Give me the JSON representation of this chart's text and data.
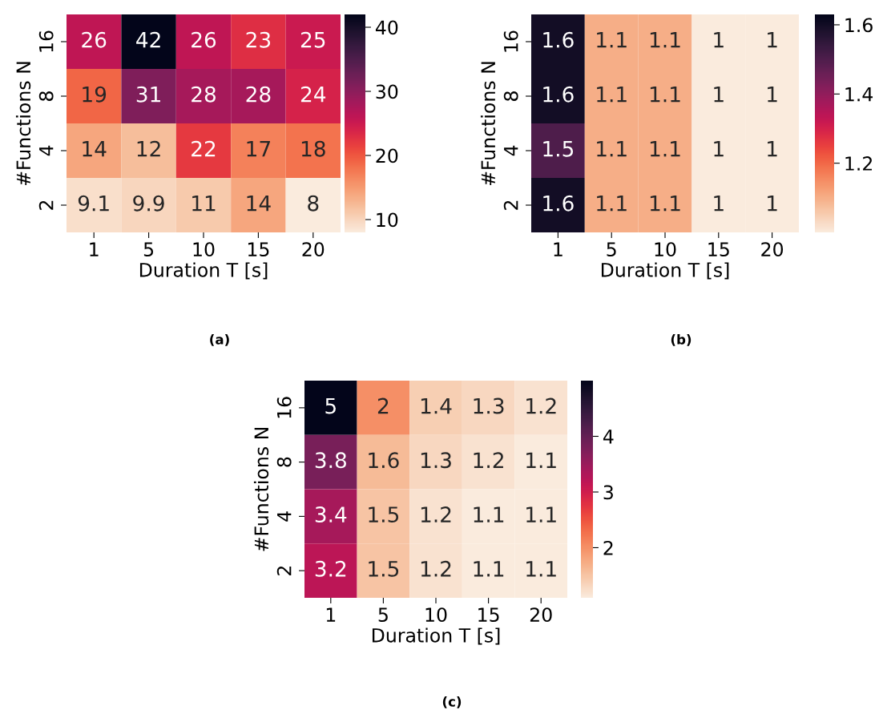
{
  "chart_data": [
    {
      "type": "heatmap",
      "xlabel": "Duration T [s]",
      "ylabel": "#Functions N",
      "categories": [
        "1",
        "5",
        "10",
        "15",
        "20"
      ],
      "y_categories": [
        "16",
        "8",
        "4",
        "2"
      ],
      "cells": [
        [
          26,
          42,
          26,
          23,
          25
        ],
        [
          19,
          31,
          28,
          28,
          24
        ],
        [
          14,
          12,
          22,
          17,
          18
        ],
        [
          9.1,
          9.9,
          11,
          14,
          8
        ]
      ],
      "clim": [
        8,
        42
      ],
      "cticks": [
        10,
        20,
        30,
        40
      ],
      "data_labels": true,
      "annotations": [
        "(a)"
      ]
    },
    {
      "type": "heatmap",
      "xlabel": "Duration T [s]",
      "ylabel": "#Functions N",
      "categories": [
        "1",
        "5",
        "10",
        "15",
        "20"
      ],
      "y_categories": [
        "16",
        "8",
        "4",
        "2"
      ],
      "cells": [
        [
          1.6,
          1.1,
          1.1,
          1,
          1
        ],
        [
          1.6,
          1.1,
          1.1,
          1,
          1
        ],
        [
          1.5,
          1.1,
          1.1,
          1,
          1
        ],
        [
          1.6,
          1.1,
          1.1,
          1,
          1
        ]
      ],
      "clim": [
        1.0,
        1.63
      ],
      "cticks": [
        1.2,
        1.4,
        1.6
      ],
      "data_labels": true,
      "annotations": [
        "(b)"
      ]
    },
    {
      "type": "heatmap",
      "xlabel": "Duration T [s]",
      "ylabel": "#Functions N",
      "categories": [
        "1",
        "5",
        "10",
        "15",
        "20"
      ],
      "y_categories": [
        "16",
        "8",
        "4",
        "2"
      ],
      "cells": [
        [
          5,
          2,
          1.4,
          1.3,
          1.2
        ],
        [
          3.8,
          1.6,
          1.3,
          1.2,
          1.1
        ],
        [
          3.4,
          1.5,
          1.2,
          1.1,
          1.1
        ],
        [
          3.2,
          1.5,
          1.2,
          1.1,
          1.1
        ]
      ],
      "clim": [
        1.1,
        5.0
      ],
      "cticks": [
        2,
        3,
        4
      ],
      "data_labels": true,
      "annotations": [
        "(c)"
      ]
    }
  ]
}
